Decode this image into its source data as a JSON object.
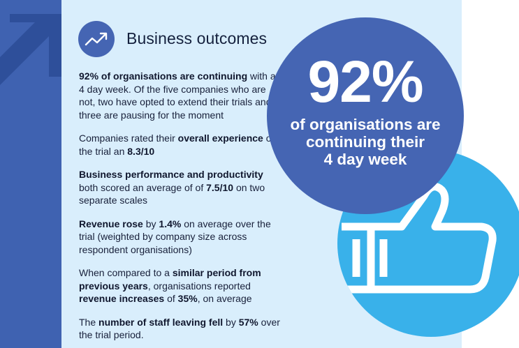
{
  "header": {
    "title": "Business outcomes",
    "icon": "trend-up-icon"
  },
  "stats": [
    {
      "name": "stat-continuing",
      "parts": [
        {
          "text": "92% of organisations are continuing",
          "bold": true
        },
        {
          "text": " with a 4 day week. Of the five companies who are not, two have opted to extend their trials and three are pausing for the moment",
          "bold": false
        }
      ]
    },
    {
      "name": "stat-experience",
      "parts": [
        {
          "text": "Companies rated their ",
          "bold": false
        },
        {
          "text": "overall experience",
          "bold": true
        },
        {
          "text": " of the trial an ",
          "bold": false
        },
        {
          "text": "8.3/10",
          "bold": true
        }
      ]
    },
    {
      "name": "stat-performance",
      "parts": [
        {
          "text": "Business performance and productivity",
          "bold": true
        },
        {
          "text": " both scored an average of of ",
          "bold": false
        },
        {
          "text": "7.5/10",
          "bold": true
        },
        {
          "text": " on two separate scales",
          "bold": false
        }
      ]
    },
    {
      "name": "stat-revenue",
      "parts": [
        {
          "text": "Revenue rose",
          "bold": true
        },
        {
          "text": " by ",
          "bold": false
        },
        {
          "text": "1.4%",
          "bold": true
        },
        {
          "text": " on average over the trial (weighted by company size across respondent organisations)",
          "bold": false
        }
      ]
    },
    {
      "name": "stat-comparison",
      "parts": [
        {
          "text": "When compared to a ",
          "bold": false
        },
        {
          "text": "similar period from previous years",
          "bold": true
        },
        {
          "text": ", organisations reported ",
          "bold": false
        },
        {
          "text": "revenue increases",
          "bold": true
        },
        {
          "text": " of ",
          "bold": false
        },
        {
          "text": "35%",
          "bold": true
        },
        {
          "text": ", on average",
          "bold": false
        }
      ]
    },
    {
      "name": "stat-staff",
      "parts": [
        {
          "text": "The ",
          "bold": false
        },
        {
          "text": "number of staff leaving fell",
          "bold": true
        },
        {
          "text": " by ",
          "bold": false
        },
        {
          "text": "57%",
          "bold": true
        },
        {
          "text": " over the trial period.",
          "bold": false
        }
      ]
    }
  ],
  "highlight": {
    "value": "92%",
    "caption_lines": [
      "of organisations are",
      "continuing their",
      "4 day week"
    ],
    "icon": "thumbs-up-icon"
  },
  "decor": {
    "arrow_icon": "arrow-up-right-icon"
  },
  "colors": {
    "navy": "#4565b3",
    "band_blue": "#3f62b1",
    "panel_blue": "#d9eefc",
    "sky_blue": "#39b1ea",
    "text_dark": "#18203a"
  }
}
